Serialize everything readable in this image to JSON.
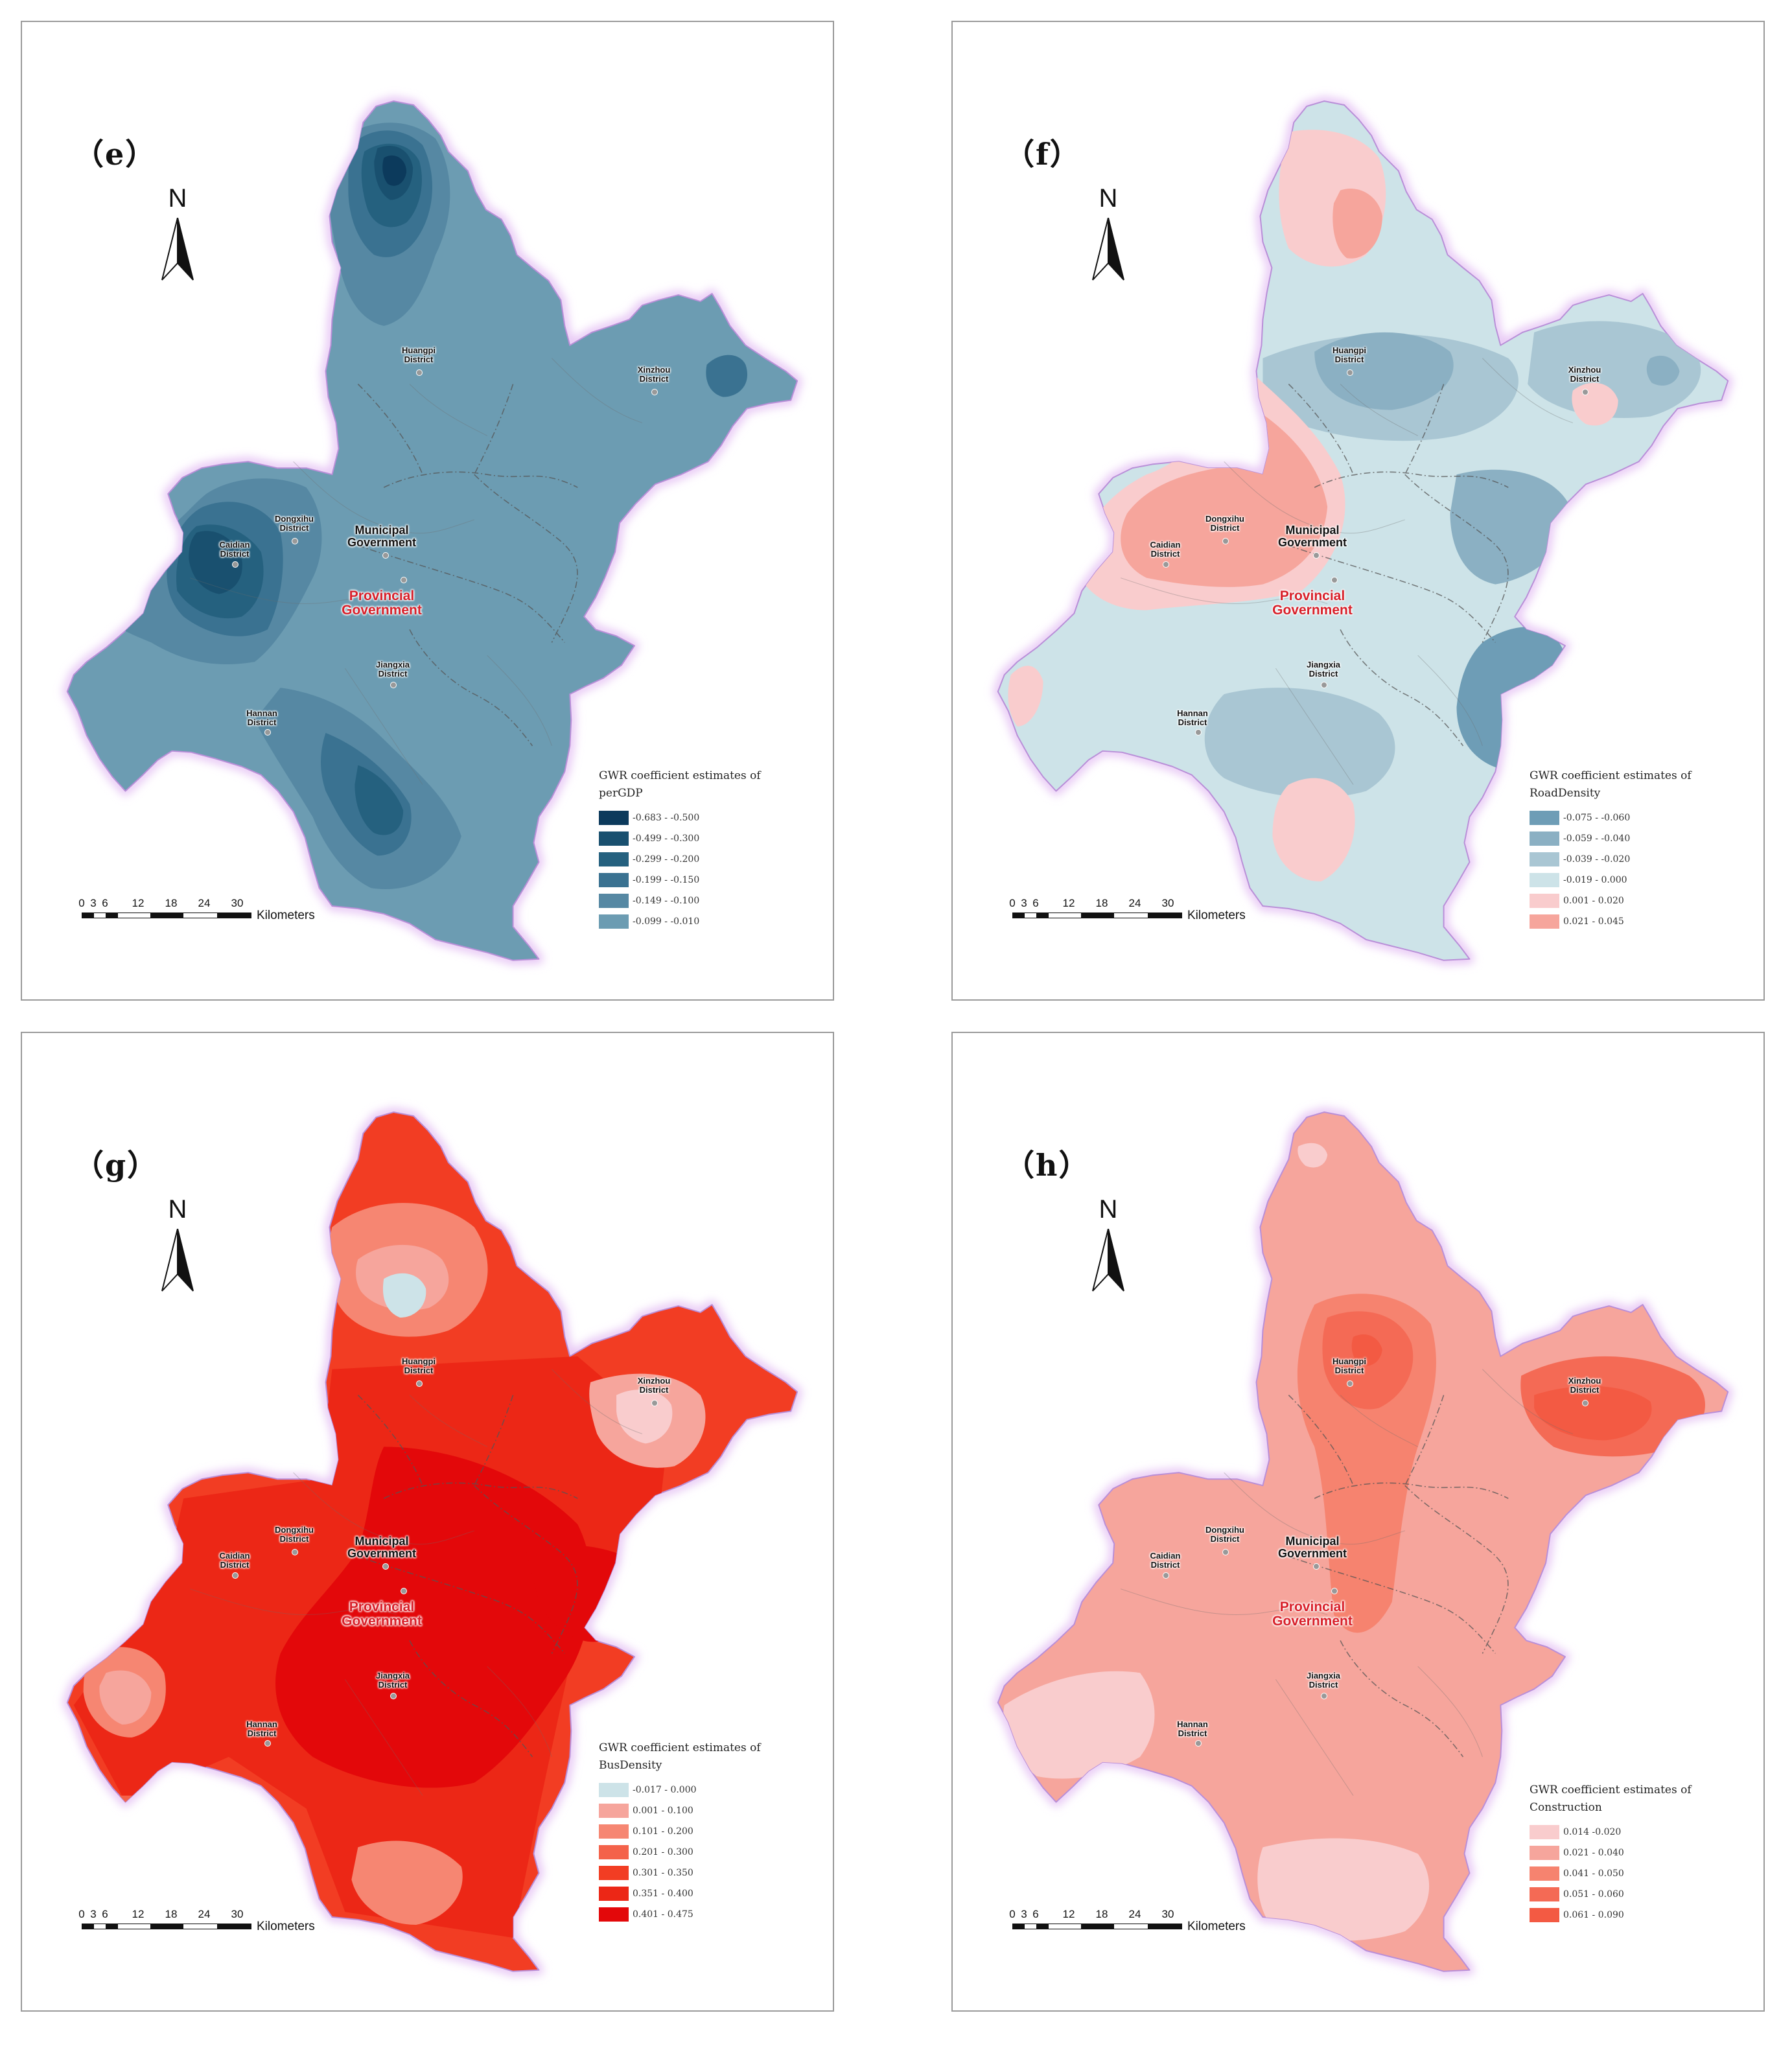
{
  "panels": [
    {
      "id": "e",
      "label": "（e）",
      "north": "N",
      "legend_title": "GWR coefficient estimates of",
      "legend_variable": "perGDP",
      "legend": [
        {
          "label": "-0.683 - -0.500",
          "color": "#0c3a5c"
        },
        {
          "label": "-0.499 - -0.300",
          "color": "#19506f"
        },
        {
          "label": "-0.299 - -0.200",
          "color": "#25617f"
        },
        {
          "label": "-0.199 - -0.150",
          "color": "#3a7291"
        },
        {
          "label": "-0.149 - -0.100",
          "color": "#5688a3"
        },
        {
          "label": "-0.099 - -0.010",
          "color": "#6c9cb2"
        }
      ],
      "scale_ticks": [
        "0",
        "3",
        "6",
        "12",
        "18",
        "24",
        "30"
      ],
      "scale_unit": "Kilometers"
    },
    {
      "id": "f",
      "label": "（f）",
      "north": "N",
      "legend_title": "GWR coefficient estimates of",
      "legend_variable": "RoadDensity",
      "legend": [
        {
          "label": "-0.075 - -0.060",
          "color": "#6e9db6"
        },
        {
          "label": "-0.059 - -0.040",
          "color": "#8bb0c3"
        },
        {
          "label": "-0.039 - -0.020",
          "color": "#a9c6d3"
        },
        {
          "label": "-0.019 - 0.000",
          "color": "#cde3e8"
        },
        {
          "label": "0.001 - 0.020",
          "color": "#f9cccd"
        },
        {
          "label": "0.021 - 0.045",
          "color": "#f6a59c"
        }
      ],
      "scale_ticks": [
        "0",
        "3",
        "6",
        "12",
        "18",
        "24",
        "30"
      ],
      "scale_unit": "Kilometers"
    },
    {
      "id": "g",
      "label": "（g）",
      "north": "N",
      "legend_title": "GWR coefficient estimates of",
      "legend_variable": "BusDensity",
      "legend": [
        {
          "label": "-0.017 - 0.000",
          "color": "#cde3e8"
        },
        {
          "label": "0.001 - 0.100",
          "color": "#f6a59c"
        },
        {
          "label": "0.101 - 0.200",
          "color": "#f68672"
        },
        {
          "label": "0.201 - 0.300",
          "color": "#f4624a"
        },
        {
          "label": "0.301 - 0.350",
          "color": "#f23d23"
        },
        {
          "label": "0.351 - 0.400",
          "color": "#ec2716"
        },
        {
          "label": "0.401 - 0.475",
          "color": "#e3080a"
        }
      ],
      "scale_ticks": [
        "0",
        "3",
        "6",
        "12",
        "18",
        "24",
        "30"
      ],
      "scale_unit": "Kilometers"
    },
    {
      "id": "h",
      "label": "（h）",
      "north": "N",
      "legend_title": "GWR coefficient estimates of",
      "legend_variable": "Construction",
      "legend": [
        {
          "label": "0.014 -0.020",
          "color": "#f9cccd"
        },
        {
          "label": "0.021 - 0.040",
          "color": "#f6a59c"
        },
        {
          "label": "0.041 - 0.050",
          "color": "#f6836f"
        },
        {
          "label": "0.051 - 0.060",
          "color": "#f46a55"
        },
        {
          "label": "0.061 - 0.090",
          "color": "#f35a43"
        }
      ],
      "scale_ticks": [
        "0",
        "3",
        "6",
        "12",
        "18",
        "24",
        "30"
      ],
      "scale_unit": "Kilometers"
    }
  ],
  "places": {
    "huangpi": [
      "Huangpi",
      "District"
    ],
    "xinzhou": [
      "Xinzhou",
      "District"
    ],
    "dongxihu": [
      "Dongxihu",
      "District"
    ],
    "caidian": [
      "Caidian",
      "District"
    ],
    "municipal": [
      "Municipal",
      "Government"
    ],
    "provincial": [
      "Provincial",
      "Government"
    ],
    "jiangxia": [
      "Jiangxia",
      "District"
    ],
    "hannan": [
      "Hannan",
      "District"
    ]
  }
}
